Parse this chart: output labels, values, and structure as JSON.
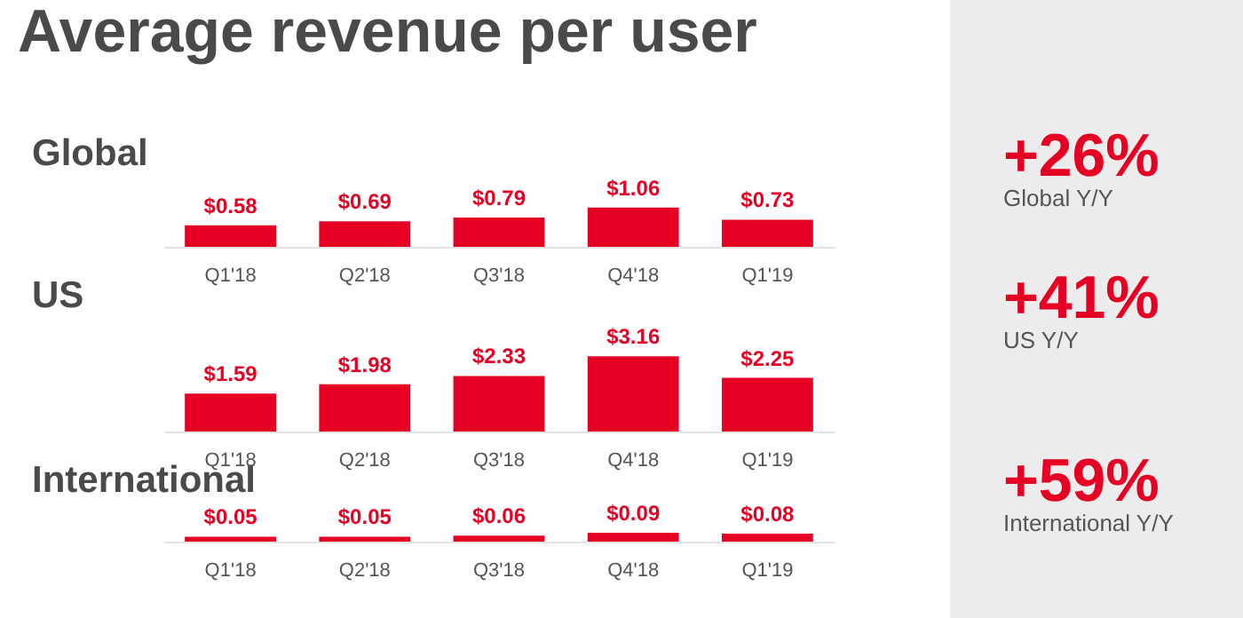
{
  "chart_data": [
    {
      "type": "other",
      "title": "Average revenue per user"
    },
    {
      "type": "bar",
      "title": "Global",
      "categories": [
        "Q1'18",
        "Q2'18",
        "Q3'18",
        "Q4'18",
        "Q1'19"
      ],
      "values": [
        0.58,
        0.69,
        0.79,
        1.06,
        0.73
      ],
      "value_labels": [
        "$0.58",
        "$0.69",
        "$0.79",
        "$1.06",
        "$0.73"
      ],
      "color": "#e60023",
      "tick_labels": "x"
    },
    {
      "type": "other",
      "title": "+26%",
      "subtitle": "Global Y/Y",
      "color": "#e60023"
    },
    {
      "type": "bar",
      "title": "US",
      "categories": [
        "Q1'18",
        "Q2'18",
        "Q3'18",
        "Q4'18",
        "Q1'19"
      ],
      "values": [
        1.59,
        1.98,
        2.33,
        3.16,
        2.25
      ],
      "value_labels": [
        "$1.59",
        "$1.98",
        "$2.33",
        "$3.16",
        "$2.25"
      ],
      "color": "#e60023",
      "tick_labels": "x"
    },
    {
      "type": "other",
      "title": "+41%",
      "subtitle": "US Y/Y",
      "color": "#e60023"
    },
    {
      "type": "bar",
      "title": "International",
      "categories": [
        "Q1'18",
        "Q2'18",
        "Q3'18",
        "Q4'18",
        "Q1'19"
      ],
      "values": [
        0.05,
        0.05,
        0.06,
        0.09,
        0.08
      ],
      "value_labels": [
        "$0.05",
        "$0.05",
        "$0.06",
        "$0.09",
        "$0.08"
      ],
      "color": "#e60023",
      "tick_labels": "x"
    },
    {
      "type": "other",
      "title": "+59%",
      "subtitle": "International Y/Y",
      "color": "#e60023"
    }
  ]
}
